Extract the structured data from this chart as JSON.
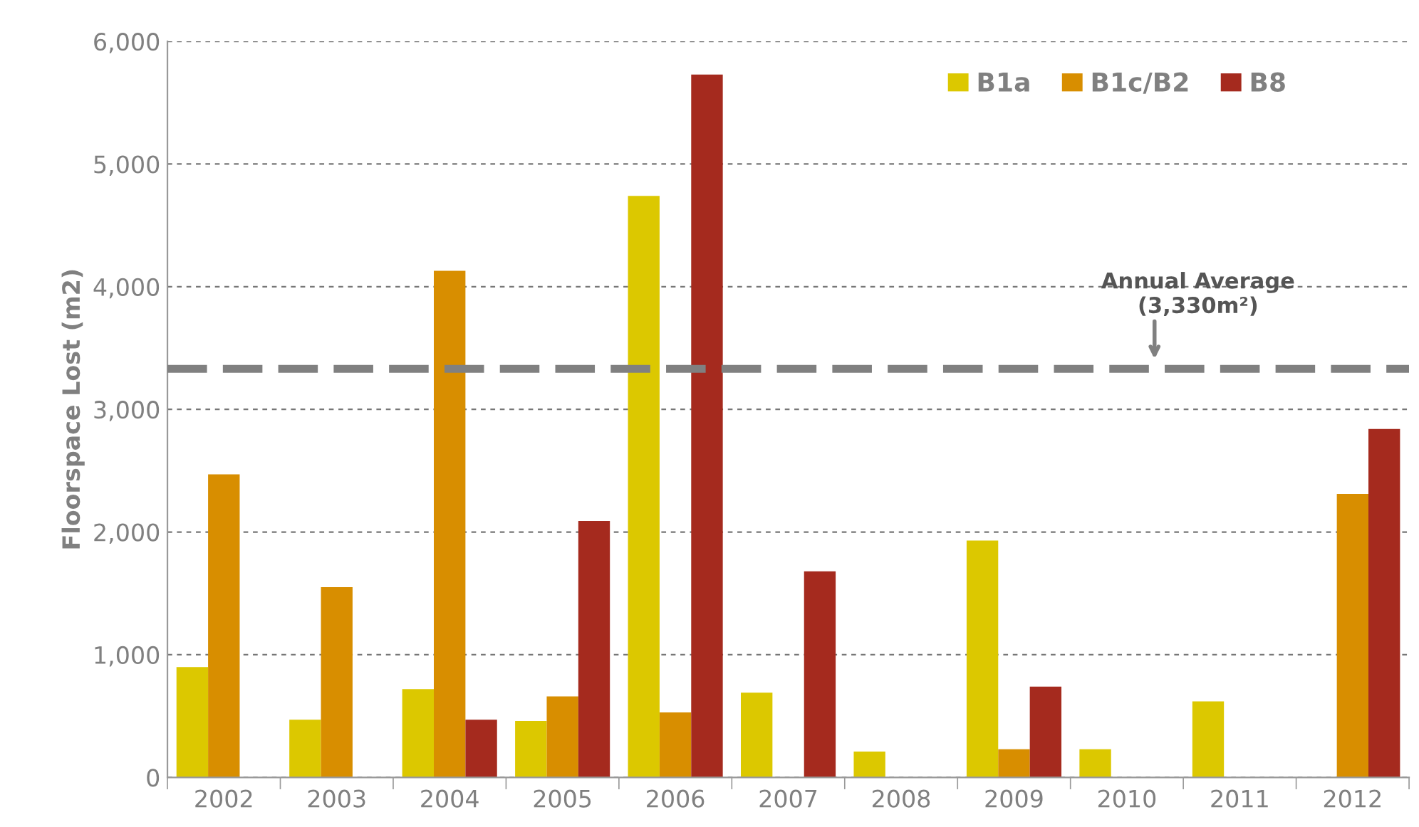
{
  "chart_data": {
    "type": "bar",
    "ylabel": "Floorspace Lost (m2)",
    "categories": [
      "2002",
      "2003",
      "2004",
      "2005",
      "2006",
      "2007",
      "2008",
      "2009",
      "2010",
      "2011",
      "2012"
    ],
    "series": [
      {
        "name": "B1a",
        "color": "#dcc800",
        "values": [
          900,
          470,
          720,
          460,
          4740,
          690,
          210,
          1930,
          230,
          620,
          null
        ]
      },
      {
        "name": "B1c/B2",
        "color": "#d88e00",
        "values": [
          2470,
          1550,
          4130,
          660,
          530,
          null,
          null,
          230,
          null,
          null,
          2310
        ]
      },
      {
        "name": "B8",
        "color": "#a52a1e",
        "values": [
          null,
          null,
          470,
          2090,
          5730,
          1680,
          null,
          740,
          null,
          null,
          2840
        ]
      }
    ],
    "ylim": [
      0,
      6000
    ],
    "yticks": [
      0,
      {
        "value": 1000,
        "label": "1,000"
      },
      {
        "value": 2000,
        "label": "2,000"
      },
      {
        "value": 3000,
        "label": "3,000"
      },
      {
        "value": 4000,
        "label": "4,000"
      },
      {
        "value": 5000,
        "label": "5,000"
      },
      {
        "value": 6000,
        "label": "6,000"
      }
    ],
    "ref_lines": [
      {
        "axis": "y",
        "value": 3330,
        "label": "Annual Average\n(3,330m²)",
        "color": "#808080",
        "line_style": "dashed"
      }
    ],
    "grid": "y",
    "legend": "top right"
  }
}
